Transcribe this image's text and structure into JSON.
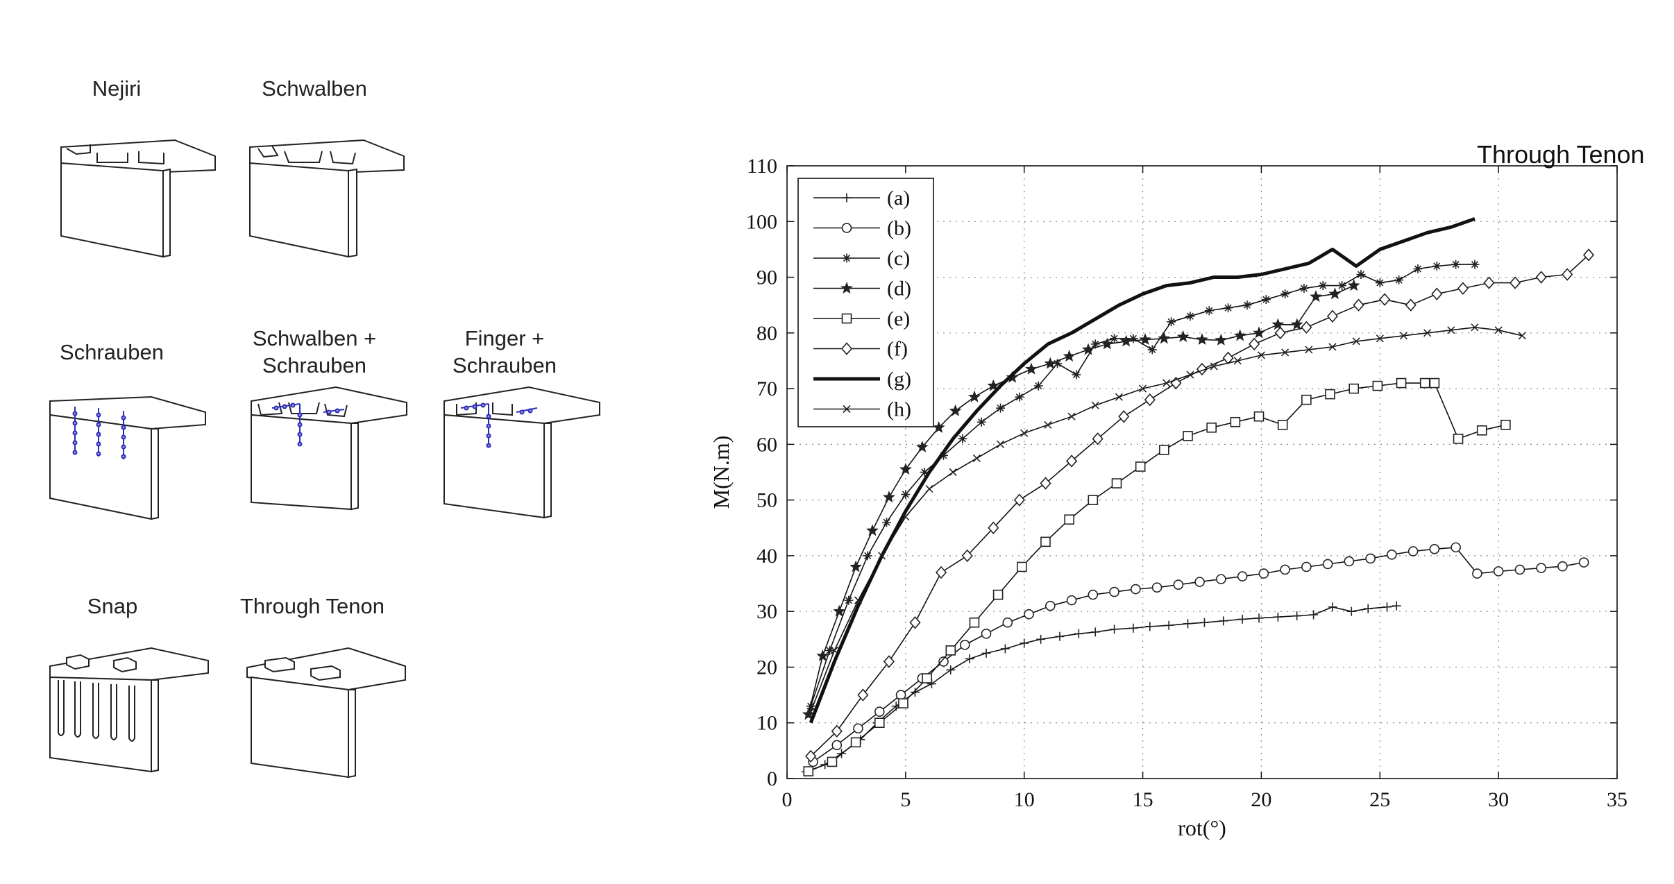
{
  "joints": [
    {
      "id": "nejiri",
      "label": "Nejiri"
    },
    {
      "id": "schwalben",
      "label": "Schwalben"
    },
    {
      "id": "schrauben",
      "label": "Schrauben"
    },
    {
      "id": "schwalben-schrauben",
      "label_line1": "Schwalben +",
      "label_line2": "Schrauben"
    },
    {
      "id": "finger-schrauben",
      "label_line1": "Finger +",
      "label_line2": "Schrauben"
    },
    {
      "id": "snap",
      "label": "Snap"
    },
    {
      "id": "through-tenon",
      "label": "Through Tenon"
    }
  ],
  "chart_data": {
    "type": "line",
    "title": "Through Tenon",
    "xlabel": "rot(°)",
    "ylabel": "M(N.m)",
    "xlim": [
      0,
      35
    ],
    "ylim": [
      0,
      110
    ],
    "xticks": [
      0,
      5,
      10,
      15,
      20,
      25,
      30,
      35
    ],
    "yticks": [
      0,
      10,
      20,
      30,
      40,
      50,
      60,
      70,
      80,
      90,
      100,
      110
    ],
    "grid": true,
    "legend_position": "top-left",
    "series": [
      {
        "name": "(a)",
        "marker": "plus",
        "width": 1.6,
        "x": [
          0.8,
          1.6,
          2.3,
          3.1,
          3.8,
          4.6,
          5.4,
          6.1,
          6.9,
          7.7,
          8.4,
          9.2,
          10,
          10.7,
          11.5,
          12.3,
          13,
          13.8,
          14.6,
          15.3,
          16.1,
          16.9,
          17.6,
          18.4,
          19.2,
          19.9,
          20.7,
          21.5,
          22.2,
          23,
          23.8,
          24.5,
          25.3,
          25.7
        ],
        "y": [
          1.2,
          2.5,
          4.5,
          7,
          10,
          13,
          15.5,
          17,
          19.5,
          21.5,
          22.5,
          23.3,
          24.3,
          25,
          25.5,
          26,
          26.3,
          26.8,
          27,
          27.3,
          27.5,
          27.8,
          28,
          28.3,
          28.6,
          28.8,
          29,
          29.2,
          29.4,
          30.8,
          30,
          30.5,
          30.8,
          31
        ]
      },
      {
        "name": "(b)",
        "marker": "circle",
        "width": 1.6,
        "x": [
          1.1,
          2.1,
          3,
          3.9,
          4.8,
          5.7,
          6.6,
          7.5,
          8.4,
          9.3,
          10.2,
          11.1,
          12,
          12.9,
          13.8,
          14.7,
          15.6,
          16.5,
          17.4,
          18.3,
          19.2,
          20.1,
          21,
          21.9,
          22.8,
          23.7,
          24.6,
          25.5,
          26.4,
          27.3,
          28.2,
          29.1,
          30,
          30.9,
          31.8,
          32.7,
          33.6
        ],
        "y": [
          3,
          6,
          9,
          12,
          15,
          18,
          21,
          24,
          26,
          28,
          29.5,
          31,
          32,
          33,
          33.5,
          34,
          34.3,
          34.8,
          35.3,
          35.8,
          36.3,
          36.8,
          37.5,
          38,
          38.5,
          39,
          39.5,
          40.2,
          40.8,
          41.2,
          41.5,
          36.8,
          37.2,
          37.5,
          37.8,
          38.1,
          38.8
        ]
      },
      {
        "name": "(c)",
        "marker": "asterisk",
        "width": 1.6,
        "x": [
          1,
          1.8,
          2.6,
          3.4,
          4.2,
          5,
          5.8,
          6.6,
          7.4,
          8.2,
          9,
          9.8,
          10.6,
          11.4,
          12.2,
          13,
          13.8,
          14.6,
          15.4,
          16.2,
          17,
          17.8,
          18.6,
          19.4,
          20.2,
          21,
          21.8,
          22.6,
          23.4,
          24.2,
          25,
          25.8,
          26.6,
          27.4,
          28.2,
          29
        ],
        "y": [
          13,
          23,
          32,
          40,
          46,
          51,
          55,
          58,
          61,
          64,
          66.5,
          68.5,
          70.5,
          74.5,
          72.5,
          78,
          79,
          79,
          77,
          82,
          83,
          84,
          84.5,
          85,
          86,
          87,
          88,
          88.5,
          88.5,
          90.5,
          89,
          89.5,
          91.5,
          92,
          92.3,
          92.3
        ]
      },
      {
        "name": "(d)",
        "marker": "star",
        "width": 1.6,
        "x": [
          0.9,
          1.5,
          2.2,
          2.9,
          3.6,
          4.3,
          5,
          5.7,
          6.4,
          7.1,
          7.9,
          8.7,
          9.5,
          10.3,
          11.1,
          11.9,
          12.7,
          13.5,
          14.3,
          15.1,
          15.9,
          16.7,
          17.5,
          18.3,
          19.1,
          19.9,
          20.7,
          21.5,
          22.3,
          23.1,
          23.9
        ],
        "y": [
          11.5,
          22,
          30,
          38,
          44.5,
          50.5,
          55.5,
          59.5,
          63,
          66,
          68.5,
          70.5,
          72,
          73.5,
          74.5,
          75.8,
          77,
          78,
          78.5,
          78.8,
          79,
          79.3,
          78.8,
          78.7,
          79.5,
          80,
          81.5,
          81.5,
          86.5,
          87,
          88.5
        ]
      },
      {
        "name": "(e)",
        "marker": "square",
        "width": 1.6,
        "x": [
          0.9,
          1.9,
          2.9,
          3.9,
          4.9,
          5.9,
          6.9,
          7.9,
          8.9,
          9.9,
          10.9,
          11.9,
          12.9,
          13.9,
          14.9,
          15.9,
          16.9,
          17.9,
          18.9,
          19.9,
          20.9,
          21.9,
          22.9,
          23.9,
          24.9,
          25.9,
          26.9,
          27.3,
          28.3,
          29.3,
          30.3
        ],
        "y": [
          1.3,
          3,
          6.5,
          10,
          13.5,
          18,
          23,
          28,
          33,
          38,
          42.5,
          46.5,
          50,
          53,
          56,
          59,
          61.5,
          63,
          64,
          65,
          63.5,
          68,
          69,
          70,
          70.5,
          71,
          71,
          71,
          61,
          62.5,
          63.5
        ]
      },
      {
        "name": "(f)",
        "marker": "diamond",
        "width": 1.6,
        "x": [
          1,
          2.1,
          3.2,
          4.3,
          5.4,
          6.5,
          7.6,
          8.7,
          9.8,
          10.9,
          12,
          13.1,
          14.2,
          15.3,
          16.4,
          17.5,
          18.6,
          19.7,
          20.8,
          21.9,
          23,
          24.1,
          25.2,
          26.3,
          27.4,
          28.5,
          29.6,
          30.7,
          31.8,
          32.9,
          33.8
        ],
        "y": [
          4,
          8.5,
          15,
          21,
          28,
          37,
          40,
          45,
          50,
          53,
          57,
          61,
          65,
          68,
          71,
          73.5,
          75.5,
          78,
          80,
          81,
          83,
          85,
          86,
          85,
          87,
          88,
          89,
          89,
          90,
          90.5,
          94
        ]
      },
      {
        "name": "(g)",
        "marker": "none",
        "width": 5,
        "x": [
          1,
          2,
          3,
          4,
          5,
          6,
          7,
          8,
          9,
          10,
          11,
          12,
          13,
          14,
          15,
          16,
          17,
          18,
          19,
          20,
          21,
          22,
          23,
          24,
          25,
          26,
          27,
          28,
          29
        ],
        "y": [
          10,
          21,
          31,
          40,
          48,
          55,
          61,
          66,
          70.5,
          74.5,
          78,
          80,
          82.5,
          85,
          87,
          88.5,
          89,
          90,
          90,
          90.5,
          91.5,
          92.5,
          95,
          92,
          95,
          96.5,
          98,
          99,
          100.5
        ]
      },
      {
        "name": "(h)",
        "marker": "cross",
        "width": 1.6,
        "x": [
          1,
          2,
          3,
          4,
          5,
          6,
          7,
          8,
          9,
          10,
          11,
          12,
          13,
          14,
          15,
          16,
          17,
          18,
          19,
          20,
          21,
          22,
          23,
          24,
          25,
          26,
          27,
          28,
          29,
          30,
          31
        ],
        "y": [
          12,
          23,
          32,
          40,
          47,
          52,
          55,
          57.5,
          60,
          62,
          63.5,
          65,
          67,
          68.5,
          70,
          71,
          72.5,
          74,
          75,
          76,
          76.5,
          77,
          77.5,
          78.5,
          79,
          79.5,
          80,
          80.5,
          81,
          80.5,
          79.5
        ]
      }
    ]
  }
}
